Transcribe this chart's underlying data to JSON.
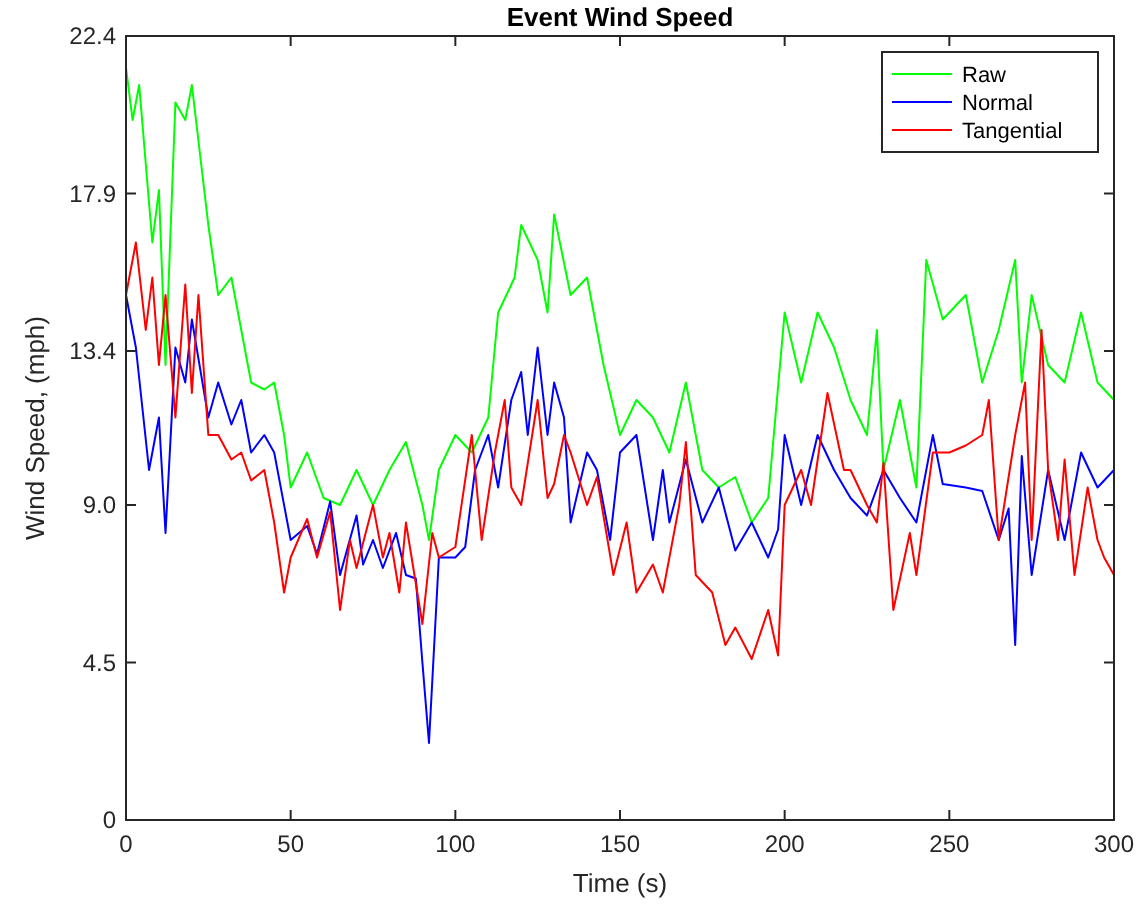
{
  "chart_data": {
    "type": "line",
    "title": "Event Wind Speed",
    "xlabel": "Time (s)",
    "ylabel": "Wind Speed, (mph)",
    "xlim": [
      0,
      300
    ],
    "xticks": [
      0,
      50,
      100,
      150,
      200,
      250,
      300
    ],
    "ylim": [
      0,
      22.4
    ],
    "yticks": [
      0,
      4.5,
      {
        "value": 9,
        "label": "9.0"
      },
      13.4,
      17.9,
      22.4
    ],
    "legend": "top right",
    "grid": false,
    "series": [
      {
        "name": "Raw",
        "color": "#00ff00",
        "x": [
          0,
          2,
          4,
          8,
          10,
          12,
          15,
          18,
          20,
          25,
          28,
          32,
          35,
          38,
          42,
          45,
          48,
          50,
          55,
          60,
          65,
          70,
          75,
          80,
          85,
          90,
          92,
          95,
          100,
          105,
          110,
          113,
          118,
          120,
          125,
          128,
          130,
          135,
          140,
          145,
          150,
          155,
          160,
          165,
          170,
          175,
          180,
          185,
          190,
          195,
          200,
          205,
          210,
          215,
          220,
          225,
          228,
          230,
          235,
          240,
          243,
          248,
          255,
          260,
          265,
          270,
          272,
          275,
          280,
          285,
          290,
          295,
          300
        ],
        "values": [
          21.5,
          20,
          21,
          16.5,
          18,
          13,
          20.5,
          20,
          21,
          17,
          15,
          15.5,
          14,
          12.5,
          12.3,
          12.5,
          11,
          9.5,
          10.5,
          9.2,
          9,
          10,
          9,
          10,
          10.8,
          9,
          8,
          10,
          11,
          10.5,
          11.5,
          14.5,
          15.5,
          17,
          16,
          14.5,
          17.3,
          15,
          15.5,
          13,
          11,
          12,
          11.5,
          10.5,
          12.5,
          10,
          9.5,
          9.8,
          8.5,
          9.2,
          14.5,
          12.5,
          14.5,
          13.5,
          12,
          11,
          14,
          10,
          12,
          9.5,
          16,
          14.3,
          15,
          12.5,
          14,
          16,
          12.5,
          15,
          13,
          12.5,
          14.5,
          12.5,
          12
        ]
      },
      {
        "name": "Normal",
        "color": "#0000ff",
        "x": [
          0,
          3,
          7,
          10,
          12,
          15,
          18,
          20,
          25,
          28,
          32,
          35,
          38,
          42,
          45,
          50,
          55,
          58,
          62,
          65,
          70,
          72,
          75,
          78,
          82,
          85,
          88,
          90,
          92,
          95,
          100,
          103,
          106,
          110,
          113,
          117,
          120,
          122,
          125,
          128,
          130,
          133,
          135,
          140,
          143,
          147,
          150,
          155,
          160,
          163,
          165,
          170,
          175,
          180,
          185,
          190,
          195,
          198,
          200,
          205,
          210,
          215,
          220,
          225,
          230,
          235,
          240,
          245,
          248,
          255,
          260,
          265,
          268,
          270,
          272,
          275,
          280,
          285,
          290,
          295,
          300
        ],
        "values": [
          15,
          13.5,
          10,
          11.5,
          8.2,
          13.5,
          12.5,
          14.3,
          11.5,
          12.5,
          11.3,
          12,
          10.5,
          11,
          10.5,
          8,
          8.4,
          7.6,
          9.1,
          7,
          8.7,
          7.3,
          8,
          7.2,
          8.2,
          7,
          6.9,
          4.5,
          2.2,
          7.5,
          7.5,
          7.8,
          10,
          11,
          9.5,
          12,
          12.8,
          11,
          13.5,
          11,
          12.5,
          11.5,
          8.5,
          10.5,
          10,
          8,
          10.5,
          11,
          8,
          10,
          8.5,
          10.3,
          8.5,
          9.5,
          7.7,
          8.5,
          7.5,
          8.3,
          11,
          9,
          11,
          10,
          9.2,
          8.7,
          10,
          9.2,
          8.5,
          11,
          9.6,
          9.5,
          9.4,
          8,
          8.9,
          5,
          10.4,
          7,
          10,
          8,
          10.5,
          9.5,
          10
        ]
      },
      {
        "name": "Tangential",
        "color": "#ff0000",
        "x": [
          0,
          3,
          6,
          8,
          10,
          12,
          15,
          18,
          20,
          22,
          25,
          28,
          32,
          35,
          38,
          42,
          45,
          48,
          50,
          55,
          58,
          62,
          65,
          68,
          70,
          75,
          78,
          80,
          83,
          85,
          90,
          93,
          95,
          100,
          105,
          108,
          112,
          115,
          117,
          120,
          125,
          128,
          130,
          133,
          135,
          140,
          143,
          148,
          152,
          155,
          160,
          163,
          168,
          170,
          173,
          178,
          182,
          185,
          190,
          195,
          198,
          200,
          205,
          208,
          213,
          218,
          220,
          225,
          228,
          230,
          233,
          238,
          240,
          245,
          250,
          255,
          260,
          262,
          265,
          270,
          273,
          275,
          278,
          280,
          283,
          285,
          288,
          292,
          295,
          297,
          300
        ],
        "values": [
          15,
          16.5,
          14,
          15.5,
          13,
          15,
          11.5,
          15.3,
          12.2,
          15,
          11,
          11,
          10.3,
          10.5,
          9.7,
          10,
          8.5,
          6.5,
          7.5,
          8.6,
          7.5,
          8.8,
          6,
          8,
          7.2,
          9,
          7.5,
          8.2,
          6.5,
          8.5,
          5.6,
          8.2,
          7.5,
          7.8,
          11,
          8,
          10.5,
          12,
          9.5,
          9,
          12,
          9.2,
          9.6,
          11,
          10.5,
          9,
          9.8,
          7,
          8.5,
          6.5,
          7.3,
          6.5,
          9,
          10.8,
          7,
          6.5,
          5,
          5.5,
          4.6,
          6,
          4.7,
          9,
          10,
          9,
          12.2,
          10,
          10,
          9,
          8.5,
          10.2,
          6,
          8.2,
          7,
          10.5,
          10.5,
          10.7,
          11,
          12,
          8,
          11,
          12.5,
          8,
          14,
          10,
          8,
          10.3,
          7,
          9.5,
          8,
          7.5,
          7
        ]
      }
    ]
  }
}
